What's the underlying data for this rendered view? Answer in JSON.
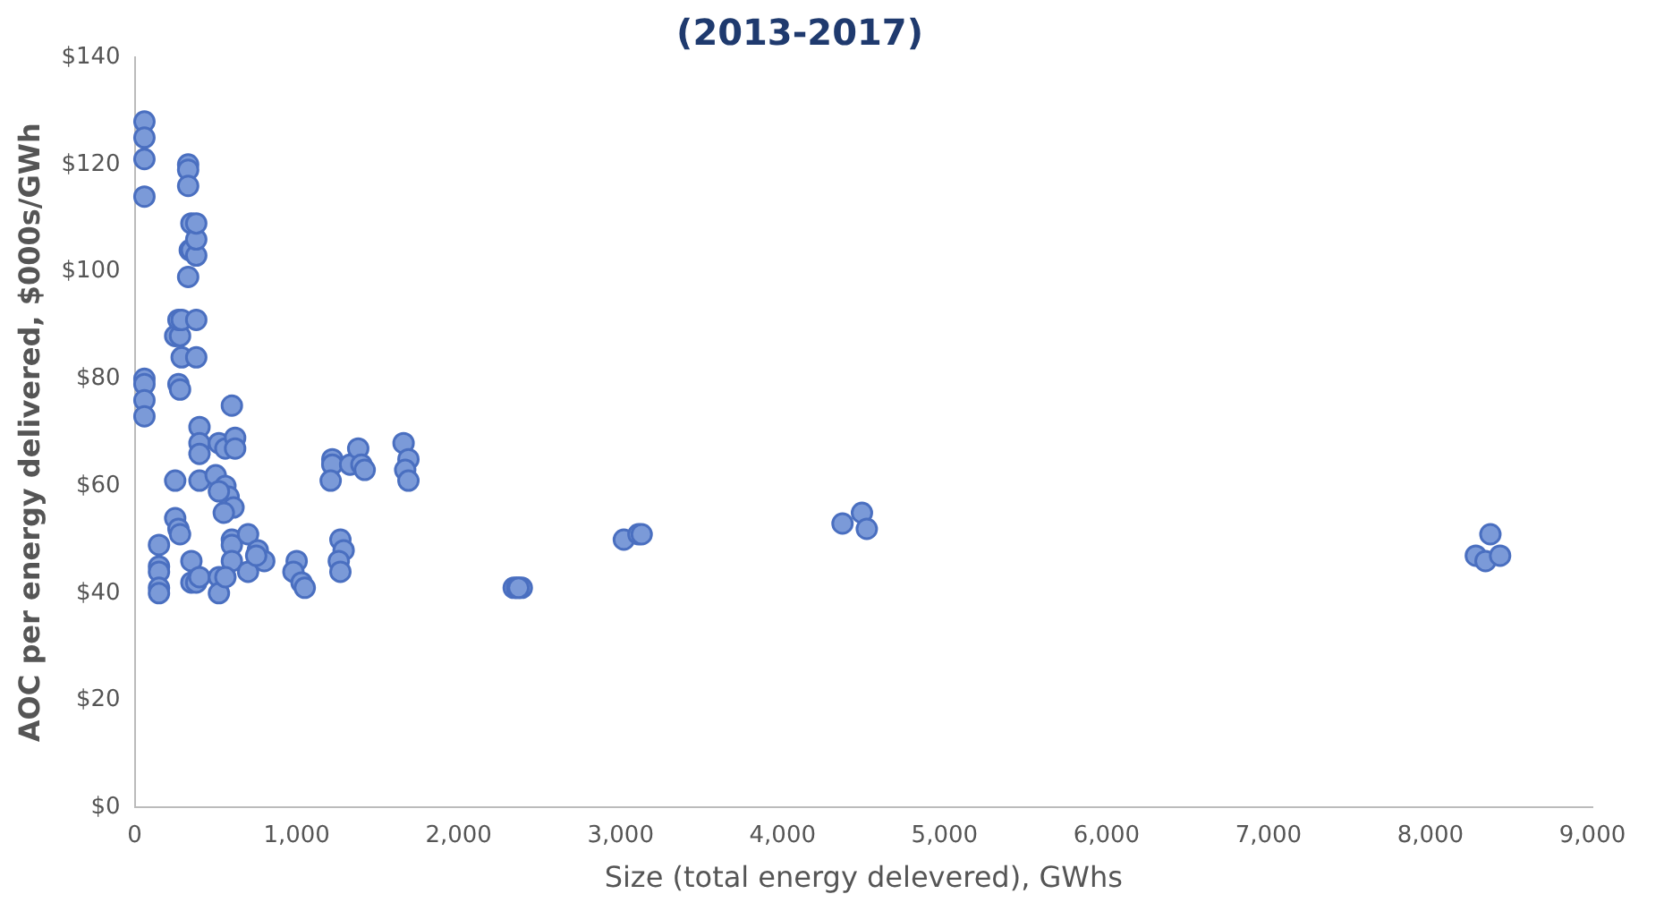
{
  "chart_data": {
    "type": "scatter",
    "title": "(2013-2017)",
    "xlabel": "Size (total energy delevered), GWhs",
    "ylabel": "AOC per energy delivered, $000s/GWh",
    "series": [
      {
        "color": "#7b9ad8",
        "x": [
          60,
          60,
          60,
          60,
          60,
          60,
          60,
          60,
          150,
          150,
          150,
          150,
          150,
          330,
          330,
          330,
          350,
          340,
          350,
          380,
          380,
          380,
          330,
          250,
          280,
          270,
          290,
          380,
          290,
          380,
          270,
          280,
          400,
          400,
          400,
          400,
          250,
          250,
          270,
          280,
          350,
          350,
          380,
          400,
          520,
          560,
          600,
          620,
          620,
          500,
          560,
          580,
          610,
          550,
          520,
          600,
          600,
          600,
          520,
          520,
          560,
          700,
          700,
          760,
          800,
          750,
          1000,
          980,
          1030,
          1050,
          1220,
          1220,
          1210,
          1270,
          1290,
          1260,
          1270,
          1330,
          1380,
          1400,
          1420,
          1660,
          1690,
          1670,
          1690,
          2340,
          2360,
          2390,
          2370,
          3020,
          3110,
          3130,
          4370,
          4490,
          4520,
          8280,
          8340,
          8370,
          8430
        ],
        "values": [
          128,
          125,
          121,
          114,
          80,
          79,
          76,
          73,
          49,
          45,
          44,
          41,
          40,
          120,
          119,
          116,
          109,
          104,
          104,
          103,
          106,
          109,
          99,
          88,
          88,
          91,
          91,
          91,
          84,
          84,
          79,
          78,
          71,
          68,
          66,
          61,
          61,
          54,
          52,
          51,
          46,
          42,
          42,
          43,
          68,
          67,
          75,
          69,
          67,
          62,
          60,
          58,
          56,
          55,
          59,
          50,
          49,
          46,
          43,
          40,
          43,
          51,
          44,
          48,
          46,
          47,
          46,
          44,
          42,
          41,
          65,
          64,
          61,
          50,
          48,
          46,
          44,
          64,
          67,
          64,
          63,
          68,
          65,
          63,
          61,
          41,
          41,
          41,
          41,
          50,
          51,
          51,
          53,
          55,
          52,
          47,
          46,
          51,
          47
        ]
      }
    ],
    "xlim": [
      0,
      9000
    ],
    "xticks": [
      0,
      {
        "value": 1000,
        "label": "1,000"
      },
      {
        "value": 2000,
        "label": "2,000"
      },
      {
        "value": 3000,
        "label": "3,000"
      },
      {
        "value": 4000,
        "label": "4,000"
      },
      {
        "value": 5000,
        "label": "5,000"
      },
      {
        "value": 6000,
        "label": "6,000"
      },
      {
        "value": 7000,
        "label": "7,000"
      },
      {
        "value": 8000,
        "label": "8,000"
      },
      {
        "value": 9000,
        "label": "9,000"
      }
    ],
    "ylim": [
      0,
      140
    ],
    "yticks": [
      {
        "value": 0,
        "label": "$0"
      },
      {
        "value": 20,
        "label": "$20"
      },
      {
        "value": 40,
        "label": "$40"
      },
      {
        "value": 60,
        "label": "$60"
      },
      {
        "value": 80,
        "label": "$80"
      },
      {
        "value": 100,
        "label": "$100"
      },
      {
        "value": 120,
        "label": "$120"
      },
      {
        "value": 140,
        "label": "$140"
      }
    ],
    "grid": false,
    "legend": false,
    "marker": "circle"
  }
}
